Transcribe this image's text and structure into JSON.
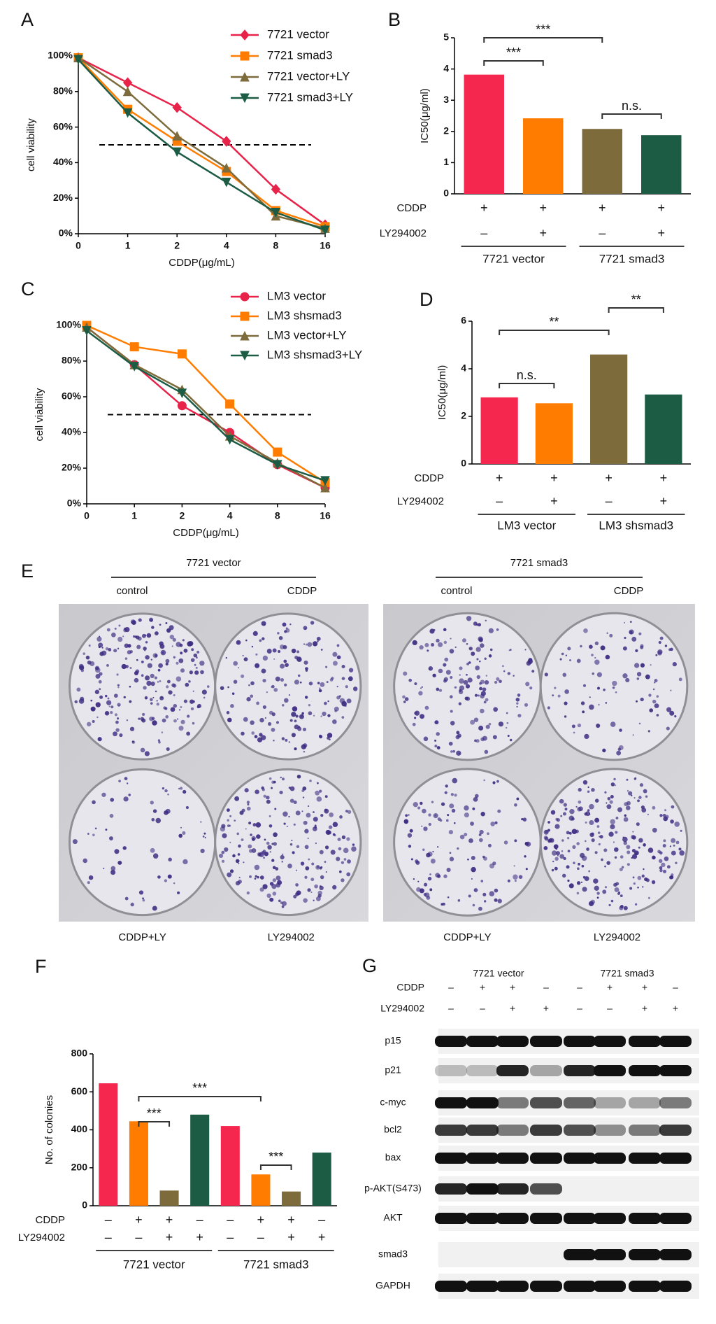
{
  "chart_data": [
    {
      "type": "line",
      "panel": "A",
      "x_label": "CDDP(μg/mL)",
      "y_label": "cell viability",
      "categories": [
        "0",
        "1",
        "2",
        "4",
        "8",
        "16"
      ],
      "ylim": [
        0,
        100
      ],
      "yticks": [
        {
          "value": 0,
          "label": "0%"
        },
        {
          "value": 20,
          "label": "20%"
        },
        {
          "value": 40,
          "label": "40%"
        },
        {
          "value": 60,
          "label": "60%"
        },
        {
          "value": 80,
          "label": "80%"
        },
        {
          "value": 100,
          "label": "100%"
        }
      ],
      "hline": 50,
      "series": [
        {
          "name": "7721 vector",
          "color": "#e8234a",
          "marker": "diamond",
          "values": [
            99,
            85,
            71,
            52,
            25,
            5
          ]
        },
        {
          "name": "7721 smad3",
          "color": "#ff7c00",
          "marker": "square",
          "values": [
            99,
            70,
            52,
            35,
            13,
            4
          ]
        },
        {
          "name": "7721 vector+LY",
          "color": "#7d6b3c",
          "marker": "triangle",
          "values": [
            99,
            80,
            55,
            37,
            10,
            3
          ]
        },
        {
          "name": "7721 smad3+LY",
          "color": "#1c5c44",
          "marker": "triangle-down",
          "values": [
            98,
            68,
            46,
            29,
            12,
            2
          ]
        }
      ]
    },
    {
      "type": "bar",
      "panel": "B",
      "y_label": "IC50(μg/ml)",
      "values": [
        3.82,
        2.42,
        2.08,
        1.88
      ],
      "colors": [
        "#f5274e",
        "#ff7c00",
        "#7d6b3c",
        "#1c5c44"
      ],
      "ylim": [
        0,
        5
      ],
      "yticks": [
        0,
        1,
        2,
        3,
        4,
        5
      ],
      "rows": [
        {
          "label": "CDDP",
          "marks": [
            "+",
            "+",
            "+",
            "+"
          ]
        },
        {
          "label": "LY294002",
          "marks": [
            "–",
            "+",
            "–",
            "+"
          ]
        }
      ],
      "groups": [
        "7721 vector",
        "7721 smad3"
      ],
      "annotations": [
        "***",
        "***",
        "n.s."
      ]
    },
    {
      "type": "line",
      "panel": "C",
      "x_label": "CDDP(μg/mL)",
      "y_label": "cell viability",
      "categories": [
        "0",
        "1",
        "2",
        "4",
        "8",
        "16"
      ],
      "ylim": [
        0,
        100
      ],
      "yticks": [
        {
          "value": 0,
          "label": "0%"
        },
        {
          "value": 20,
          "label": "20%"
        },
        {
          "value": 40,
          "label": "40%"
        },
        {
          "value": 60,
          "label": "60%"
        },
        {
          "value": 80,
          "label": "80%"
        },
        {
          "value": 100,
          "label": "100%"
        }
      ],
      "hline": 50,
      "series": [
        {
          "name": "LM3 vector",
          "color": "#e8234a",
          "marker": "circle",
          "values": [
            99,
            78,
            55,
            40,
            22,
            9
          ]
        },
        {
          "name": "LM3 shsmad3",
          "color": "#ff7c00",
          "marker": "square",
          "values": [
            100,
            88,
            84,
            56,
            29,
            12
          ]
        },
        {
          "name": "LM3 vector+LY",
          "color": "#7d6b3c",
          "marker": "triangle",
          "values": [
            99,
            78,
            64,
            38,
            23,
            9
          ]
        },
        {
          "name": "LM3 shsmad3+LY",
          "color": "#1c5c44",
          "marker": "triangle-down",
          "values": [
            97,
            77,
            62,
            36,
            22,
            13
          ]
        }
      ]
    },
    {
      "type": "bar",
      "panel": "D",
      "y_label": "IC50(μg/ml)",
      "values": [
        2.8,
        2.55,
        4.6,
        2.92
      ],
      "colors": [
        "#f5274e",
        "#ff7c00",
        "#7d6b3c",
        "#1c5c44"
      ],
      "ylim": [
        0,
        6
      ],
      "yticks": [
        0,
        2,
        4,
        6
      ],
      "rows": [
        {
          "label": "CDDP",
          "marks": [
            "+",
            "+",
            "+",
            "+"
          ]
        },
        {
          "label": "LY294002",
          "marks": [
            "–",
            "+",
            "–",
            "+"
          ]
        }
      ],
      "groups": [
        "LM3 vector",
        "LM3 shsmad3"
      ],
      "annotations": [
        "**",
        "**",
        "n.s."
      ]
    },
    {
      "type": "bar",
      "panel": "F",
      "y_label": "No. of colonies",
      "values": [
        645,
        445,
        80,
        480,
        420,
        165,
        75,
        280
      ],
      "colors": [
        "#f5274e",
        "#ff7c00",
        "#7d6b3c",
        "#1c5c44",
        "#f5274e",
        "#ff7c00",
        "#7d6b3c",
        "#1c5c44"
      ],
      "ylim": [
        0,
        800
      ],
      "yticks": [
        0,
        200,
        400,
        600,
        800
      ],
      "rows": [
        {
          "label": "CDDP",
          "marks": [
            "–",
            "+",
            "+",
            "–",
            "–",
            "+",
            "+",
            "–"
          ]
        },
        {
          "label": "LY294002",
          "marks": [
            "–",
            "–",
            "+",
            "+",
            "–",
            "–",
            "+",
            "+"
          ]
        }
      ],
      "groups": [
        "7721 vector",
        "7721 smad3"
      ],
      "annotations": [
        "***",
        "***",
        "***"
      ]
    }
  ],
  "panel_e": {
    "panel": "E",
    "plates": [
      {
        "title": "7721 vector",
        "top": [
          "control",
          "CDDP"
        ],
        "bottom": [
          "CDDP+LY",
          "LY294002"
        ]
      },
      {
        "title": "7721 smad3",
        "top": [
          "control",
          "CDDP"
        ],
        "bottom": [
          "CDDP+LY",
          "LY294002"
        ]
      }
    ]
  },
  "panel_g": {
    "panel": "G",
    "groups": [
      "7721 vector",
      "7721 smad3"
    ],
    "rows": [
      {
        "label": "CDDP",
        "marks": [
          "–",
          "+",
          "+",
          "–",
          "–",
          "+",
          "+",
          "–"
        ]
      },
      {
        "label": "LY294002",
        "marks": [
          "–",
          "–",
          "+",
          "+",
          "–",
          "–",
          "+",
          "+"
        ]
      }
    ],
    "blots": [
      "p15",
      "p21",
      "c-myc",
      "bcl2",
      "bax",
      "p-AKT(S473)",
      "AKT",
      "smad3",
      "GAPDH"
    ]
  }
}
